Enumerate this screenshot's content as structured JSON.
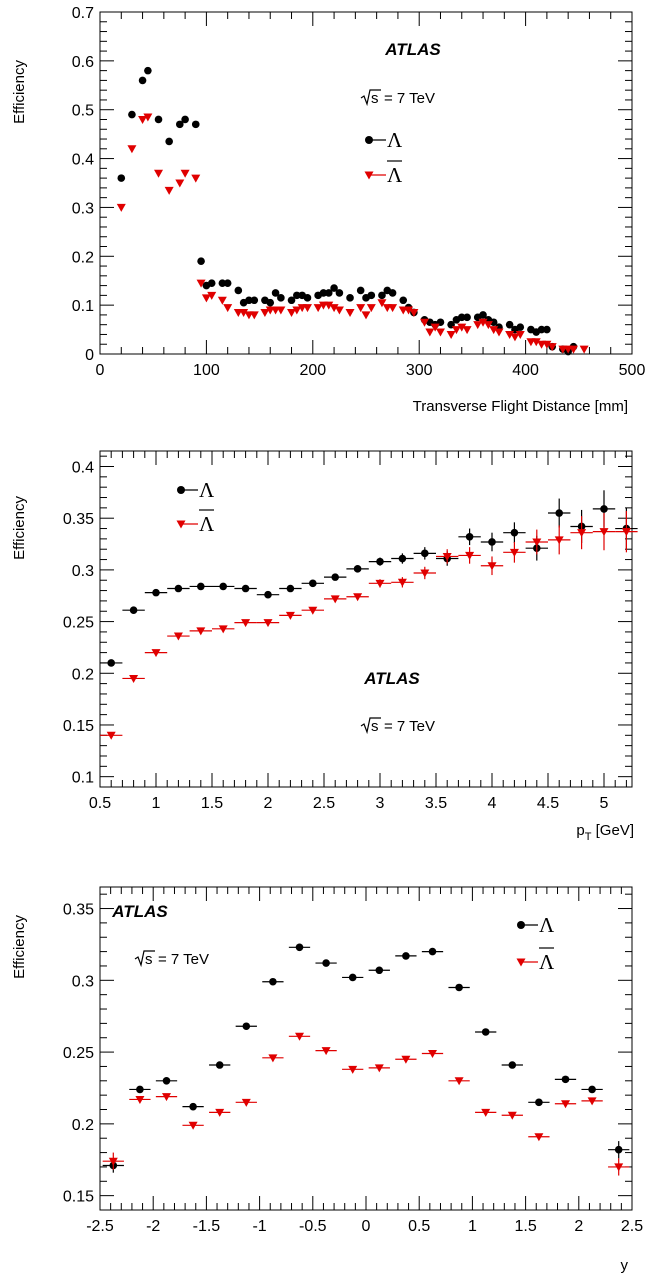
{
  "chart_data": [
    {
      "type": "scatter",
      "xlabel": "Transverse Flight Distance [mm]",
      "ylabel": "Efficiency",
      "xlim": [
        0,
        500
      ],
      "ylim": [
        0,
        0.7
      ],
      "x_ticks": [
        "0",
        "100",
        "200",
        "300",
        "400",
        "500"
      ],
      "y_ticks": [
        "0",
        "0.1",
        "0.2",
        "0.3",
        "0.4",
        "0.5",
        "0.6",
        "0.7"
      ],
      "annotations": {
        "experiment": "ATLAS",
        "energy": "= 7 TeV",
        "sqrt_s": "s"
      },
      "legend": {
        "position": "top-right",
        "entries": [
          "Λ",
          "Λ"
        ]
      },
      "series": [
        {
          "name": "Λ",
          "color": "#000000",
          "marker": "circle",
          "x": [
            20,
            30,
            40,
            45,
            55,
            65,
            75,
            80,
            90,
            95,
            100,
            105,
            115,
            120,
            130,
            135,
            140,
            145,
            155,
            160,
            165,
            170,
            180,
            185,
            190,
            195,
            205,
            210,
            215,
            220,
            225,
            235,
            245,
            250,
            255,
            265,
            270,
            275,
            285,
            290,
            295,
            305,
            310,
            315,
            320,
            330,
            335,
            340,
            345,
            355,
            360,
            365,
            370,
            375,
            385,
            390,
            395,
            405,
            410,
            415,
            420,
            425,
            435,
            440,
            445
          ],
          "y": [
            0.36,
            0.49,
            0.56,
            0.58,
            0.48,
            0.435,
            0.47,
            0.48,
            0.47,
            0.19,
            0.14,
            0.145,
            0.145,
            0.145,
            0.13,
            0.105,
            0.11,
            0.11,
            0.11,
            0.105,
            0.125,
            0.115,
            0.11,
            0.12,
            0.12,
            0.115,
            0.12,
            0.125,
            0.125,
            0.135,
            0.125,
            0.115,
            0.13,
            0.115,
            0.12,
            0.12,
            0.13,
            0.125,
            0.11,
            0.095,
            0.085,
            0.07,
            0.065,
            0.06,
            0.065,
            0.06,
            0.07,
            0.075,
            0.075,
            0.075,
            0.08,
            0.07,
            0.065,
            0.055,
            0.06,
            0.05,
            0.055,
            0.05,
            0.045,
            0.05,
            0.05,
            0.015,
            0.01,
            0.005,
            0.015
          ]
        },
        {
          "name": "Λ",
          "color": "#e00000",
          "marker": "triangle-down",
          "x": [
            20,
            30,
            40,
            45,
            55,
            65,
            75,
            80,
            90,
            95,
            100,
            105,
            115,
            120,
            130,
            135,
            140,
            145,
            155,
            160,
            165,
            170,
            180,
            185,
            190,
            195,
            205,
            210,
            215,
            220,
            225,
            235,
            245,
            250,
            255,
            265,
            270,
            275,
            285,
            290,
            295,
            305,
            310,
            315,
            320,
            330,
            335,
            340,
            345,
            355,
            360,
            365,
            370,
            375,
            385,
            390,
            395,
            405,
            410,
            415,
            420,
            425,
            435,
            440,
            445,
            455
          ],
          "y": [
            0.3,
            0.42,
            0.48,
            0.485,
            0.37,
            0.335,
            0.35,
            0.37,
            0.36,
            0.145,
            0.115,
            0.12,
            0.11,
            0.095,
            0.085,
            0.085,
            0.08,
            0.08,
            0.085,
            0.09,
            0.09,
            0.09,
            0.085,
            0.09,
            0.095,
            0.095,
            0.095,
            0.1,
            0.1,
            0.095,
            0.09,
            0.085,
            0.095,
            0.08,
            0.095,
            0.105,
            0.095,
            0.095,
            0.09,
            0.09,
            0.085,
            0.065,
            0.045,
            0.055,
            0.045,
            0.04,
            0.05,
            0.055,
            0.05,
            0.06,
            0.065,
            0.06,
            0.05,
            0.045,
            0.04,
            0.035,
            0.04,
            0.025,
            0.025,
            0.02,
            0.02,
            0.015,
            0.01,
            0.01,
            0.01,
            0.01
          ]
        }
      ]
    },
    {
      "type": "scatter",
      "xlabel": "[GeV]",
      "xlabel_p": "p",
      "xlabel_sub": "T",
      "ylabel": "Efficiency",
      "xlim": [
        0.5,
        5.25
      ],
      "ylim": [
        0.09,
        0.415
      ],
      "x_ticks": [
        "0.5",
        "1",
        "1.5",
        "2",
        "2.5",
        "3",
        "3.5",
        "4",
        "4.5",
        "5"
      ],
      "y_ticks": [
        "0.1",
        "0.15",
        "0.2",
        "0.25",
        "0.3",
        "0.35",
        "0.4"
      ],
      "annotations": {
        "experiment": "ATLAS",
        "energy": "= 7 TeV",
        "sqrt_s": "s"
      },
      "legend": {
        "position": "top-left",
        "entries": [
          "Λ",
          "Λ"
        ]
      },
      "series": [
        {
          "name": "Λ",
          "color": "#000000",
          "marker": "circle",
          "bin_halfwidth": 0.1,
          "x": [
            0.6,
            0.8,
            1.0,
            1.2,
            1.4,
            1.6,
            1.8,
            2.0,
            2.2,
            2.4,
            2.6,
            2.8,
            3.0,
            3.2,
            3.4,
            3.6,
            3.8,
            4.0,
            4.2,
            4.4,
            4.6,
            4.8,
            5.0,
            5.2
          ],
          "y": [
            0.21,
            0.261,
            0.278,
            0.282,
            0.284,
            0.284,
            0.282,
            0.276,
            0.282,
            0.287,
            0.293,
            0.301,
            0.308,
            0.311,
            0.316,
            0.311,
            0.332,
            0.327,
            0.336,
            0.321,
            0.355,
            0.342,
            0.359,
            0.34
          ],
          "err": [
            0.002,
            0.002,
            0.002,
            0.002,
            0.002,
            0.002,
            0.002,
            0.002,
            0.002,
            0.002,
            0.003,
            0.003,
            0.004,
            0.005,
            0.006,
            0.007,
            0.008,
            0.009,
            0.01,
            0.012,
            0.014,
            0.016,
            0.018,
            0.02
          ]
        },
        {
          "name": "Λ",
          "color": "#e00000",
          "marker": "triangle-down",
          "bin_halfwidth": 0.1,
          "x": [
            0.6,
            0.8,
            1.0,
            1.2,
            1.4,
            1.6,
            1.8,
            2.0,
            2.2,
            2.4,
            2.6,
            2.8,
            3.0,
            3.2,
            3.4,
            3.6,
            3.8,
            4.0,
            4.2,
            4.4,
            4.6,
            4.8,
            5.0,
            5.2
          ],
          "y": [
            0.14,
            0.195,
            0.22,
            0.236,
            0.241,
            0.243,
            0.249,
            0.249,
            0.256,
            0.261,
            0.272,
            0.274,
            0.287,
            0.288,
            0.297,
            0.313,
            0.314,
            0.304,
            0.317,
            0.327,
            0.329,
            0.336,
            0.337,
            0.337
          ],
          "err": [
            0.002,
            0.002,
            0.002,
            0.002,
            0.002,
            0.002,
            0.002,
            0.002,
            0.002,
            0.003,
            0.003,
            0.003,
            0.004,
            0.005,
            0.006,
            0.007,
            0.008,
            0.009,
            0.01,
            0.012,
            0.014,
            0.016,
            0.018,
            0.02
          ]
        }
      ]
    },
    {
      "type": "scatter",
      "xlabel": "y",
      "ylabel": "Efficiency",
      "xlim": [
        -2.5,
        2.5
      ],
      "ylim": [
        0.14,
        0.365
      ],
      "x_ticks": [
        "-2.5",
        "-2",
        "-1.5",
        "-1",
        "-0.5",
        "0",
        "0.5",
        "1",
        "1.5",
        "2",
        "2.5"
      ],
      "y_ticks": [
        "0.15",
        "0.2",
        "0.25",
        "0.3",
        "0.35"
      ],
      "annotations": {
        "experiment": "ATLAS",
        "energy": "= 7 TeV",
        "sqrt_s": "s"
      },
      "legend": {
        "position": "top-right",
        "entries": [
          "Λ",
          "Λ"
        ]
      },
      "series": [
        {
          "name": "Λ",
          "color": "#000000",
          "marker": "circle",
          "bin_halfwidth": 0.1,
          "x": [
            -2.375,
            -2.125,
            -1.875,
            -1.625,
            -1.375,
            -1.125,
            -0.875,
            -0.625,
            -0.375,
            -0.125,
            0.125,
            0.375,
            0.625,
            0.875,
            1.125,
            1.375,
            1.625,
            1.875,
            2.125,
            2.375
          ],
          "y": [
            0.171,
            0.224,
            0.23,
            0.212,
            0.241,
            0.268,
            0.299,
            0.323,
            0.312,
            0.302,
            0.307,
            0.317,
            0.32,
            0.295,
            0.264,
            0.241,
            0.215,
            0.231,
            0.224,
            0.182
          ],
          "err": [
            0.005,
            0.002,
            0.002,
            0.002,
            0.002,
            0.002,
            0.002,
            0.002,
            0.002,
            0.002,
            0.002,
            0.002,
            0.002,
            0.002,
            0.002,
            0.002,
            0.002,
            0.002,
            0.002,
            0.006
          ]
        },
        {
          "name": "Λ",
          "color": "#e00000",
          "marker": "triangle-down",
          "bin_halfwidth": 0.1,
          "x": [
            -2.375,
            -2.125,
            -1.875,
            -1.625,
            -1.375,
            -1.125,
            -0.875,
            -0.625,
            -0.375,
            -0.125,
            0.125,
            0.375,
            0.625,
            0.875,
            1.125,
            1.375,
            1.625,
            1.875,
            2.125,
            2.375
          ],
          "y": [
            0.174,
            0.217,
            0.219,
            0.199,
            0.208,
            0.215,
            0.246,
            0.261,
            0.251,
            0.238,
            0.239,
            0.245,
            0.249,
            0.23,
            0.208,
            0.206,
            0.191,
            0.214,
            0.216,
            0.17
          ],
          "err": [
            0.006,
            0.002,
            0.002,
            0.002,
            0.002,
            0.002,
            0.002,
            0.002,
            0.002,
            0.002,
            0.002,
            0.002,
            0.002,
            0.002,
            0.002,
            0.002,
            0.002,
            0.002,
            0.002,
            0.006
          ]
        }
      ]
    }
  ]
}
